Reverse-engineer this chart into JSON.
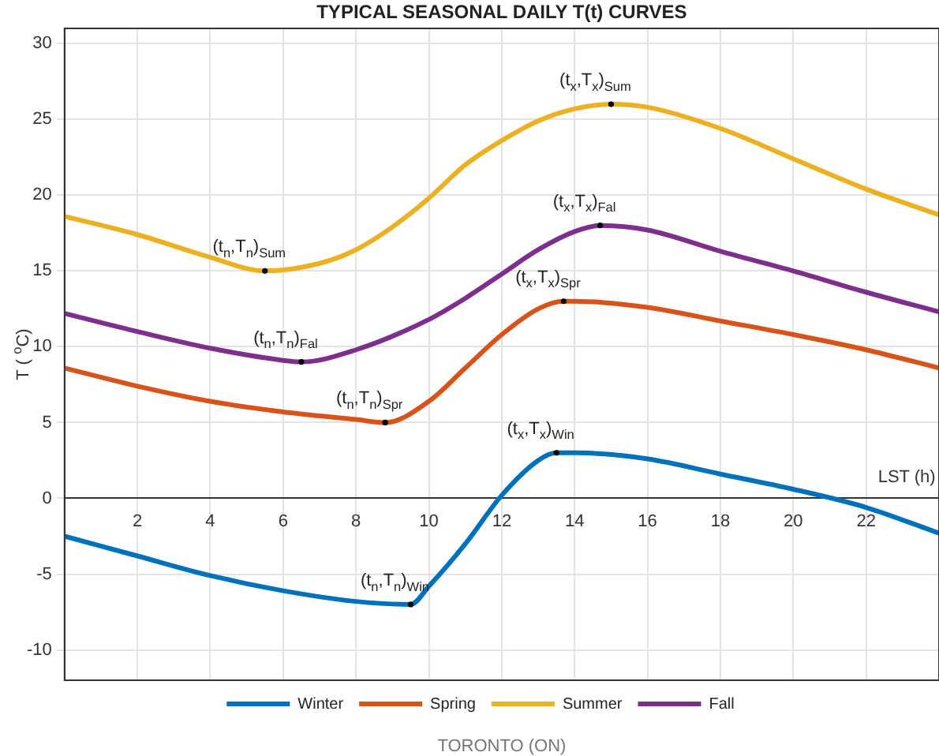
{
  "chart_data": {
    "type": "line",
    "title": "TYPICAL SEASONAL DAILY T(t) CURVES",
    "xlabel": "LST (h)",
    "ylabel": "T ( $^{o}$C)",
    "xlim": [
      0,
      24
    ],
    "xticks": [
      2,
      4,
      6,
      8,
      10,
      12,
      14,
      16,
      18,
      20,
      22
    ],
    "ylim": [
      -12,
      31
    ],
    "yticks": [
      -10,
      -5,
      0,
      5,
      10,
      15,
      20,
      25,
      30
    ],
    "grid": true,
    "legend": "bottom",
    "marker": "none",
    "line_style": "solid",
    "series": [
      {
        "name": "Winter",
        "color": "#0072bd",
        "x": [
          0,
          2,
          4,
          6,
          8,
          9.5,
          10,
          11,
          12,
          13,
          13.5,
          14,
          16,
          18,
          20,
          22,
          24
        ],
        "values": [
          -2.5,
          -3.8,
          -5.1,
          -6.1,
          -6.8,
          -7,
          -5.8,
          -3,
          0.2,
          2.5,
          3,
          3,
          2.6,
          1.6,
          0.6,
          -0.6,
          -2.3
        ]
      },
      {
        "name": "Spring",
        "color": "#d95319",
        "x": [
          0,
          2,
          4,
          6,
          8,
          8.8,
          10,
          11,
          12,
          13,
          13.7,
          14,
          16,
          18,
          20,
          22,
          24
        ],
        "values": [
          8.6,
          7.4,
          6.4,
          5.7,
          5.2,
          5,
          6.4,
          8.6,
          10.8,
          12.5,
          13,
          13,
          12.6,
          11.7,
          10.8,
          9.8,
          8.6
        ]
      },
      {
        "name": "Summer",
        "color": "#edb120",
        "x": [
          0,
          2,
          4,
          5.5,
          7,
          8,
          9,
          10,
          11,
          12,
          13,
          14,
          15,
          16,
          18,
          20,
          22,
          24
        ],
        "values": [
          18.6,
          17.4,
          15.9,
          15,
          15.5,
          16.4,
          17.9,
          19.8,
          22,
          23.6,
          24.9,
          25.7,
          26,
          25.8,
          24.4,
          22.4,
          20.4,
          18.7
        ]
      },
      {
        "name": "Fall",
        "color": "#7e2f8e",
        "x": [
          0,
          2,
          4,
          6,
          6.5,
          8,
          10,
          11,
          12,
          13,
          14,
          14.7,
          16,
          18,
          20,
          22,
          24
        ],
        "values": [
          12.2,
          11,
          9.9,
          9.1,
          9,
          9.8,
          11.8,
          13.2,
          14.8,
          16.4,
          17.6,
          18,
          17.7,
          16.3,
          15,
          13.6,
          12.3
        ]
      }
    ],
    "annotations": [
      {
        "text": "(t$_{n}$,T$_{n}$)$_{Win}$",
        "x": 9.5,
        "y": -7
      },
      {
        "text": "(t$_{x}$,T$_{x}$)$_{Win}$",
        "x": 13.5,
        "y": 3
      },
      {
        "text": "(t$_{n}$,T$_{n}$)$_{Spr}$",
        "x": 8.8,
        "y": 5
      },
      {
        "text": "(t$_{x}$,T$_{x}$)$_{Spr}$",
        "x": 13.7,
        "y": 13
      },
      {
        "text": "(t$_{n}$,T$_{n}$)$_{Sum}$",
        "x": 5.5,
        "y": 15
      },
      {
        "text": "(t$_{x}$,T$_{x}$)$_{Sum}$",
        "x": 15,
        "y": 26
      },
      {
        "text": "(t$_{n}$,T$_{n}$)$_{Fal}$",
        "x": 6.5,
        "y": 9
      },
      {
        "text": "(t$_{x}$,T$_{x}$)$_{Fal}$",
        "x": 14.7,
        "y": 18
      },
      "TORONTO (ON)"
    ]
  }
}
